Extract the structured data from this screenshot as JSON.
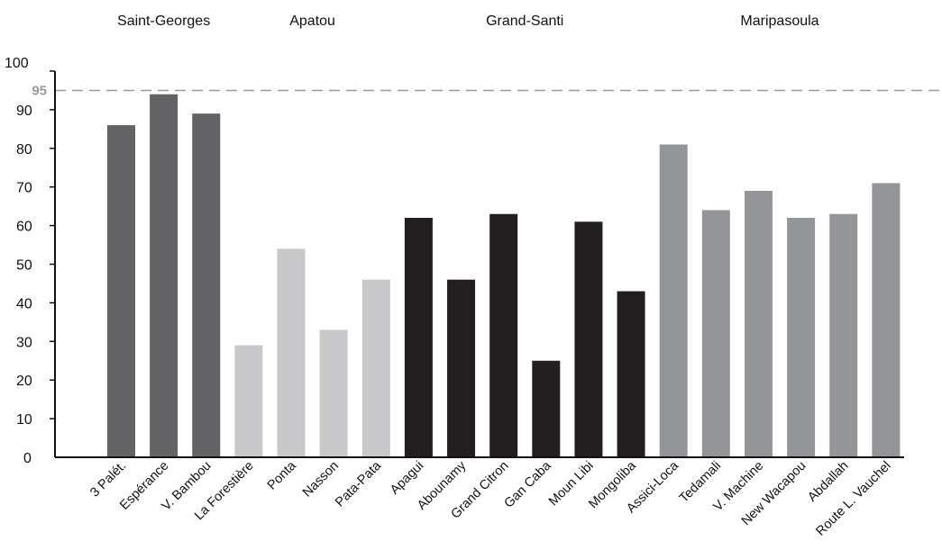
{
  "chart_data": {
    "type": "bar",
    "ylim": [
      0,
      100
    ],
    "yticks": [
      0,
      10,
      20,
      30,
      40,
      50,
      60,
      70,
      80,
      90,
      100
    ],
    "reference_line": {
      "value": 95,
      "label": "95",
      "color": "#9a9a9c",
      "style": "dashed"
    },
    "groups": [
      {
        "name": "Saint-Georges",
        "color": "#636365",
        "categories": [
          "3 Palét.",
          "Espérance",
          "V. Bambou"
        ],
        "values": [
          86,
          94,
          89
        ]
      },
      {
        "name": "Apatou",
        "color": "#c8c8ca",
        "categories": [
          "La Forestière",
          "Ponta",
          "Nasson",
          "Pata-Pata"
        ],
        "values": [
          29,
          54,
          33,
          46
        ]
      },
      {
        "name": "Grand-Santi",
        "color": "#231f20",
        "categories": [
          "Apagui",
          "Abounamy",
          "Grand Citron",
          "Gan Caba",
          "Moun Libi",
          "Mongoliba"
        ],
        "values": [
          62,
          46,
          63,
          25,
          61,
          43
        ]
      },
      {
        "name": "Maripasoula",
        "color": "#939598",
        "categories": [
          "Assici-Loca",
          "Tedamali",
          "V. Machine",
          "New Wacapou",
          "Abdallah",
          "Route L. Vauchel"
        ],
        "values": [
          81,
          64,
          69,
          62,
          63,
          71
        ]
      }
    ],
    "xlabel": "",
    "ylabel": "",
    "grid": false,
    "legend": "none"
  }
}
